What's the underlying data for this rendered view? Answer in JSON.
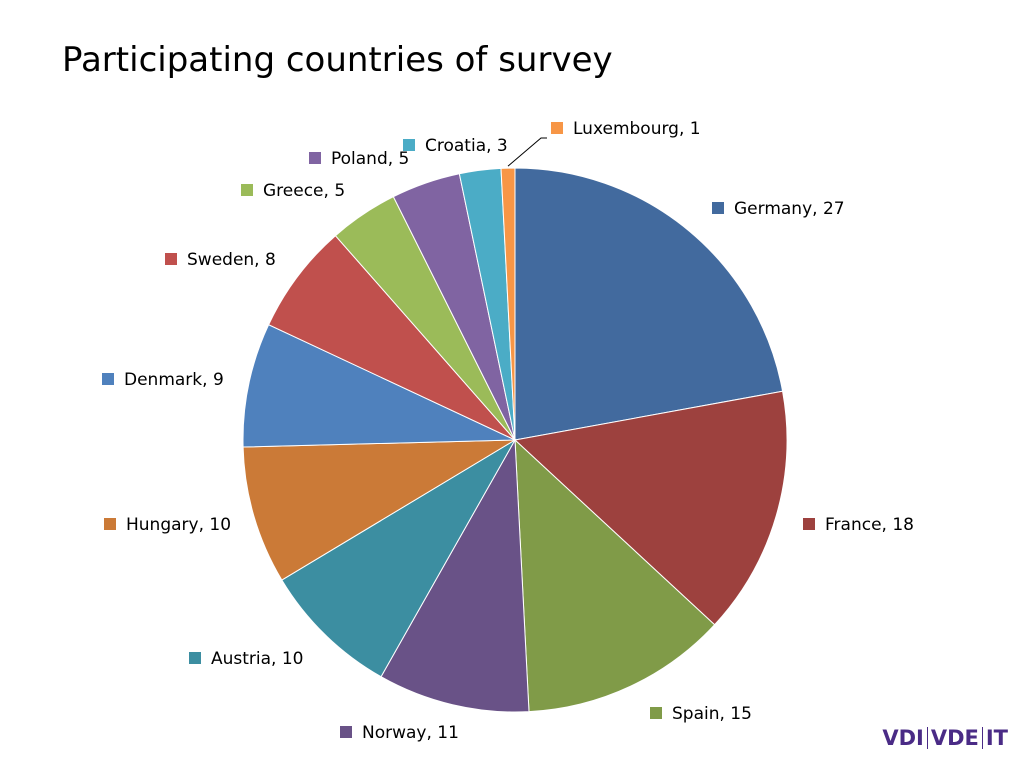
{
  "slide": {
    "title": "Participating countries of survey"
  },
  "logo": {
    "part1": "VDI",
    "part2": "VDE",
    "part3": "IT",
    "color": "#4a2b86"
  },
  "chart_data": {
    "type": "pie",
    "title": "Participating countries of survey",
    "legend": "data labels next to slices (category, value)",
    "slices": [
      {
        "label": "Germany",
        "value": 27,
        "color": "#426a9e",
        "text": "Germany, 27"
      },
      {
        "label": "France",
        "value": 18,
        "color": "#9d413e",
        "text": "France, 18"
      },
      {
        "label": "Spain",
        "value": 15,
        "color": "#809b48",
        "text": "Spain, 15"
      },
      {
        "label": "Norway",
        "value": 11,
        "color": "#695287",
        "text": "Norway, 11"
      },
      {
        "label": "Austria",
        "value": 10,
        "color": "#3c8ea1",
        "text": "Austria, 10"
      },
      {
        "label": "Hungary",
        "value": 10,
        "color": "#cb7a37",
        "text": "Hungary, 10"
      },
      {
        "label": "Denmark",
        "value": 9,
        "color": "#4f81bd",
        "text": "Denmark, 9"
      },
      {
        "label": "Sweden",
        "value": 8,
        "color": "#c0504d",
        "text": "Sweden, 8"
      },
      {
        "label": "Greece",
        "value": 5,
        "color": "#9bbb59",
        "text": "Greece, 5"
      },
      {
        "label": "Poland",
        "value": 5,
        "color": "#8064a2",
        "text": "Poland, 5"
      },
      {
        "label": "Croatia",
        "value": 3,
        "color": "#4bacc6",
        "text": "Croatia, 3"
      },
      {
        "label": "Luxembourg",
        "value": 1,
        "color": "#f79646",
        "text": "Luxembourg, 1"
      }
    ]
  }
}
